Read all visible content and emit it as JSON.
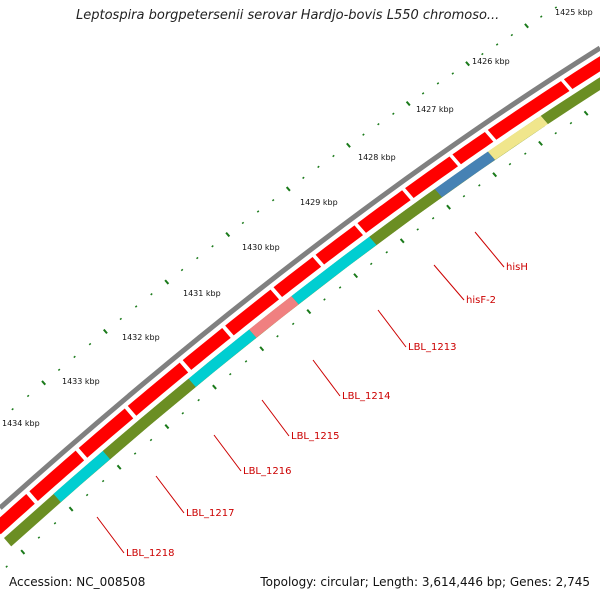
{
  "title": "Leptospira borgpetersenii serovar Hardjo-bovis L550 chromoso...",
  "footer": {
    "accession": "Accession: NC_008508",
    "summary": "Topology: circular; Length: 3,614,446 bp; Genes: 2,745"
  },
  "colors": {
    "backbone": "#808080",
    "cds_forward": "#ff0000",
    "cds_reverse": "#6b8e23",
    "tick": "#1a7a1a",
    "gene_label": "#cc0000"
  },
  "ticks": [
    {
      "label": "1425 kbp"
    },
    {
      "label": "1426 kbp"
    },
    {
      "label": "1427 kbp"
    },
    {
      "label": "1428 kbp"
    },
    {
      "label": "1429 kbp"
    },
    {
      "label": "1430 kbp"
    },
    {
      "label": "1431 kbp"
    },
    {
      "label": "1432 kbp"
    },
    {
      "label": "1433 kbp"
    },
    {
      "label": "1434 kbp"
    }
  ],
  "genes": [
    {
      "label": "hisH",
      "color": "#f0e68c"
    },
    {
      "label": "hisF-2",
      "color": "#4682b4"
    },
    {
      "label": "LBL_1213",
      "color": "#6b8e23"
    },
    {
      "label": "LBL_1214",
      "color": "#00ced1"
    },
    {
      "label": "LBL_1215",
      "color": "#f08080"
    },
    {
      "label": "LBL_1216",
      "color": "#00ced1"
    },
    {
      "label": "LBL_1217",
      "color": "#6b8e23"
    },
    {
      "label": "LBL_1218",
      "color": "#00ced1"
    }
  ]
}
